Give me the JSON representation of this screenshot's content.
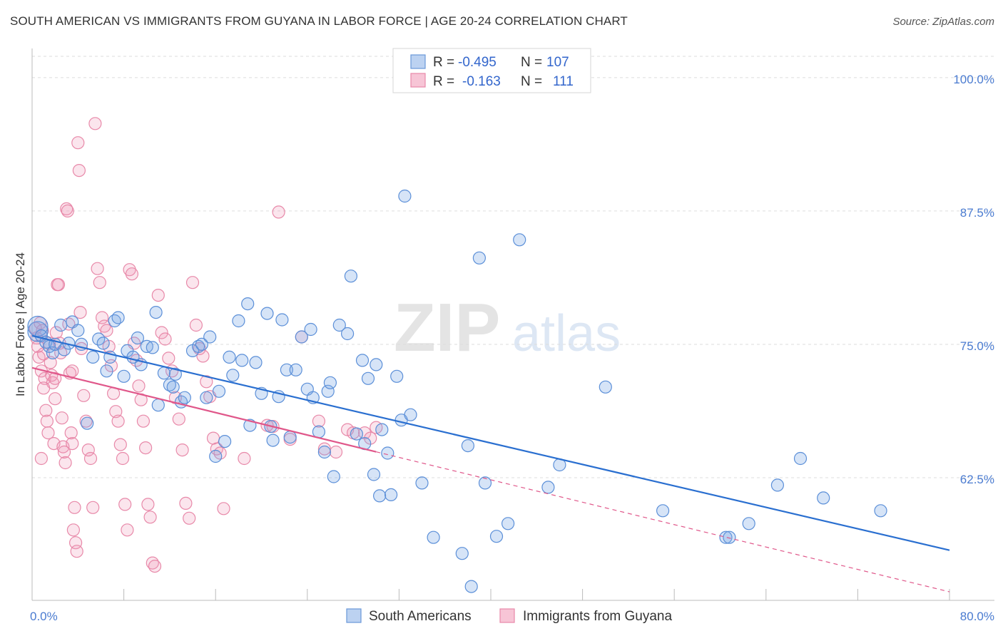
{
  "title": "SOUTH AMERICAN VS IMMIGRANTS FROM GUYANA IN LABOR FORCE | AGE 20-24 CORRELATION CHART",
  "source": "Source: ZipAtlas.com",
  "watermark": {
    "zip": "ZIP",
    "atlas": "atlas"
  },
  "colors": {
    "blue": "#5b8fd8",
    "blue_line": "#2a6fd0",
    "pink": "#e889a9",
    "pink_line": "#e0578a",
    "tick_blue": "#4a7bd0"
  },
  "chart_data": {
    "type": "scatter",
    "xlabel": "",
    "ylabel": "In Labor Force | Age 20-24",
    "xlim": [
      0,
      80
    ],
    "ylim": [
      51,
      102
    ],
    "x_tick_labels": [
      {
        "value": 0,
        "label": "0.0%"
      },
      {
        "value": 80,
        "label": "80.0%"
      }
    ],
    "x_minor_ticks": [
      8,
      16,
      24,
      32,
      40,
      48,
      56,
      64,
      72,
      80
    ],
    "y_ticks": [
      {
        "value": 100,
        "label": "100.0%"
      },
      {
        "value": 87.5,
        "label": "87.5%"
      },
      {
        "value": 75,
        "label": "75.0%"
      },
      {
        "value": 62.5,
        "label": "62.5%"
      }
    ],
    "grid": true,
    "legend": {
      "placement": "top-center",
      "entries": [
        {
          "r_label": "R =",
          "r_value": "-0.495",
          "n_label": "N =",
          "n_value": "107"
        },
        {
          "r_label": "R =",
          "r_value": "-0.163",
          "n_label": "N =",
          "n_value": "111"
        }
      ]
    },
    "series": [
      {
        "name": "South Americans",
        "color": "#5b8fd8",
        "trend": {
          "x0": 0,
          "y0": 75.8,
          "x1": 80,
          "y1": 55.7,
          "solid_to": 80
        },
        "points": [
          [
            0.5,
            76.2
          ],
          [
            0.5,
            76.7
          ],
          [
            0.8,
            75.8
          ],
          [
            1.2,
            75.2
          ],
          [
            1.5,
            74.8
          ],
          [
            1.8,
            74.2
          ],
          [
            2,
            75
          ],
          [
            2.5,
            76.8
          ],
          [
            2.8,
            74.5
          ],
          [
            3.2,
            75.1
          ],
          [
            3.5,
            77.1
          ],
          [
            4,
            76.3
          ],
          [
            4.3,
            75
          ],
          [
            4.8,
            67.6
          ],
          [
            5.3,
            73.8
          ],
          [
            5.8,
            75.5
          ],
          [
            6.2,
            75.1
          ],
          [
            6.5,
            72.5
          ],
          [
            6.8,
            73.8
          ],
          [
            7.2,
            77.2
          ],
          [
            7.5,
            77.5
          ],
          [
            8,
            72
          ],
          [
            8.3,
            74.4
          ],
          [
            8.8,
            73.8
          ],
          [
            9.2,
            75.6
          ],
          [
            9.5,
            73.1
          ],
          [
            10,
            74.8
          ],
          [
            10.5,
            74.7
          ],
          [
            10.8,
            78
          ],
          [
            11,
            69.3
          ],
          [
            11.5,
            72.3
          ],
          [
            12,
            71.2
          ],
          [
            12.3,
            71
          ],
          [
            12.5,
            72.2
          ],
          [
            13,
            69.6
          ],
          [
            13.3,
            70
          ],
          [
            14,
            74.4
          ],
          [
            14.5,
            74.8
          ],
          [
            14.8,
            75
          ],
          [
            15.2,
            70
          ],
          [
            15.5,
            75.7
          ],
          [
            16,
            64.5
          ],
          [
            16.3,
            70.6
          ],
          [
            16.8,
            65.9
          ],
          [
            17.2,
            73.8
          ],
          [
            17.5,
            72.1
          ],
          [
            18,
            77.2
          ],
          [
            18.3,
            73.5
          ],
          [
            18.8,
            78.8
          ],
          [
            19,
            67.4
          ],
          [
            19.5,
            73.3
          ],
          [
            20,
            70.4
          ],
          [
            20.5,
            77.9
          ],
          [
            20.8,
            67.3
          ],
          [
            21,
            66
          ],
          [
            21.5,
            70.1
          ],
          [
            21.8,
            77.3
          ],
          [
            22.2,
            72.6
          ],
          [
            22.5,
            66.3
          ],
          [
            23,
            72.6
          ],
          [
            23.5,
            75.7
          ],
          [
            24,
            70.8
          ],
          [
            24.3,
            76.4
          ],
          [
            24.5,
            70
          ],
          [
            25,
            66.8
          ],
          [
            25.5,
            64.9
          ],
          [
            25.8,
            70.6
          ],
          [
            26,
            71.4
          ],
          [
            26.3,
            62.6
          ],
          [
            26.8,
            76.8
          ],
          [
            27.5,
            76
          ],
          [
            27.8,
            81.4
          ],
          [
            28.3,
            66.6
          ],
          [
            28.8,
            73.5
          ],
          [
            29,
            65.7
          ],
          [
            29.3,
            71.8
          ],
          [
            29.8,
            62.8
          ],
          [
            30,
            73.1
          ],
          [
            30.3,
            60.8
          ],
          [
            30.5,
            67
          ],
          [
            31,
            64.8
          ],
          [
            31.3,
            60.9
          ],
          [
            31.8,
            72
          ],
          [
            32.2,
            67.9
          ],
          [
            32.5,
            88.9
          ],
          [
            33,
            68.4
          ],
          [
            34,
            62
          ],
          [
            35,
            56.9
          ],
          [
            37.5,
            55.4
          ],
          [
            38,
            65.5
          ],
          [
            38.3,
            52.3
          ],
          [
            39,
            83.1
          ],
          [
            39.5,
            62
          ],
          [
            40.5,
            57
          ],
          [
            41.5,
            58.2
          ],
          [
            42.5,
            84.8
          ],
          [
            45,
            61.6
          ],
          [
            46,
            63.7
          ],
          [
            50,
            71
          ],
          [
            55,
            59.4
          ],
          [
            60.5,
            56.9
          ],
          [
            60.8,
            56.9
          ],
          [
            62.5,
            58.2
          ],
          [
            65,
            61.8
          ],
          [
            67,
            64.3
          ],
          [
            69,
            60.6
          ],
          [
            74,
            59.4
          ]
        ]
      },
      {
        "name": "Immigrants from Guyana",
        "color": "#e889a9",
        "trend": {
          "x0": 0,
          "y0": 72.8,
          "x1": 80,
          "y1": 51.8,
          "solid_to": 30
        },
        "points": [
          [
            0.3,
            76.5
          ],
          [
            0.4,
            75.6
          ],
          [
            0.5,
            74.8
          ],
          [
            0.6,
            73.8
          ],
          [
            0.7,
            77
          ],
          [
            0.8,
            72.5
          ],
          [
            0.9,
            76.3
          ],
          [
            1,
            74.1
          ],
          [
            1.1,
            71.8
          ],
          [
            1.2,
            68.8
          ],
          [
            1.3,
            67.8
          ],
          [
            1.4,
            66.7
          ],
          [
            1.5,
            75.1
          ],
          [
            1.6,
            73.3
          ],
          [
            1.7,
            72.1
          ],
          [
            1.8,
            71.4
          ],
          [
            1.9,
            65.7
          ],
          [
            2,
            69.9
          ],
          [
            2.1,
            76.1
          ],
          [
            2.2,
            80.6
          ],
          [
            2.3,
            80.6
          ],
          [
            2.4,
            75.1
          ],
          [
            2.5,
            74.2
          ],
          [
            2.6,
            68.1
          ],
          [
            2.7,
            65.4
          ],
          [
            2.8,
            64.9
          ],
          [
            2.9,
            63.9
          ],
          [
            3,
            87.7
          ],
          [
            3.1,
            87.5
          ],
          [
            3.2,
            76.9
          ],
          [
            3.3,
            72.3
          ],
          [
            3.4,
            66.7
          ],
          [
            3.5,
            65.7
          ],
          [
            3.6,
            57.6
          ],
          [
            3.7,
            59.7
          ],
          [
            3.8,
            56.4
          ],
          [
            3.9,
            55.6
          ],
          [
            4,
            93.9
          ],
          [
            4.1,
            91.3
          ],
          [
            4.2,
            78
          ],
          [
            4.3,
            74.6
          ],
          [
            4.5,
            70.2
          ],
          [
            4.7,
            67.8
          ],
          [
            4.9,
            65.1
          ],
          [
            5.1,
            64.3
          ],
          [
            5.3,
            59.7
          ],
          [
            5.5,
            95.7
          ],
          [
            5.7,
            82.1
          ],
          [
            5.9,
            80.8
          ],
          [
            6.1,
            77.5
          ],
          [
            6.3,
            76.7
          ],
          [
            6.5,
            76.3
          ],
          [
            6.7,
            74.8
          ],
          [
            6.9,
            73
          ],
          [
            7.1,
            70.4
          ],
          [
            7.3,
            68.7
          ],
          [
            7.5,
            67.8
          ],
          [
            7.7,
            65.6
          ],
          [
            7.9,
            64.3
          ],
          [
            8.1,
            60
          ],
          [
            8.3,
            57.6
          ],
          [
            8.5,
            82
          ],
          [
            8.7,
            81.6
          ],
          [
            8.9,
            75.1
          ],
          [
            9.1,
            73.5
          ],
          [
            9.3,
            71.1
          ],
          [
            9.5,
            69.8
          ],
          [
            9.7,
            67.8
          ],
          [
            9.9,
            65.3
          ],
          [
            10.1,
            60
          ],
          [
            10.3,
            58.8
          ],
          [
            10.5,
            54.5
          ],
          [
            10.7,
            54.2
          ],
          [
            11,
            79.6
          ],
          [
            11.3,
            76.1
          ],
          [
            11.6,
            75.5
          ],
          [
            11.9,
            73.7
          ],
          [
            12.2,
            72.5
          ],
          [
            12.5,
            70
          ],
          [
            12.8,
            68
          ],
          [
            13.1,
            65.1
          ],
          [
            13.4,
            60.1
          ],
          [
            13.7,
            58.7
          ],
          [
            14,
            80.8
          ],
          [
            14.3,
            76.8
          ],
          [
            14.6,
            74.6
          ],
          [
            14.9,
            73.9
          ],
          [
            15.2,
            71.5
          ],
          [
            15.5,
            70.1
          ],
          [
            15.8,
            66.2
          ],
          [
            16.1,
            65.2
          ],
          [
            16.4,
            64.8
          ],
          [
            16.7,
            59.6
          ],
          [
            18.5,
            64.3
          ],
          [
            20.5,
            67.4
          ],
          [
            21,
            67.3
          ],
          [
            21.5,
            87.4
          ],
          [
            22.5,
            66.1
          ],
          [
            23.5,
            75.7
          ],
          [
            25,
            67.8
          ],
          [
            25.5,
            65.2
          ],
          [
            26.5,
            64.9
          ],
          [
            27.5,
            67
          ],
          [
            28,
            66.7
          ],
          [
            29,
            66.7
          ],
          [
            29.5,
            66.2
          ],
          [
            30,
            67.2
          ],
          [
            2.0,
            71.8
          ],
          [
            1.0,
            70.9
          ],
          [
            0.8,
            64.3
          ],
          [
            3.5,
            72.5
          ]
        ]
      }
    ]
  },
  "bottom_legend": [
    {
      "label": "South Americans",
      "color": "#5b8fd8"
    },
    {
      "label": "Immigrants from Guyana",
      "color": "#e889a9"
    }
  ]
}
